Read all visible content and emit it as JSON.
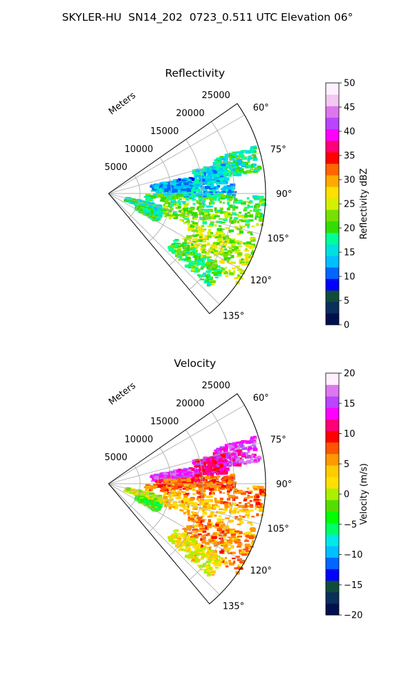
{
  "title": "SKYLER-HU  SN14_202  0723_0.511 UTC Elevation 06°",
  "chart_data": [
    {
      "type": "heatmap",
      "subplot": "polar-sector",
      "title": "Reflectivity",
      "radial_label": "Meters",
      "radial_ticks": [
        5000,
        10000,
        15000,
        20000,
        25000
      ],
      "radial_tick_labels": [
        "5000",
        "10000",
        "15000",
        "20000",
        "25000"
      ],
      "r_max": 25000,
      "azimuth_range_deg": [
        55,
        140
      ],
      "azimuth_ticks_deg": [
        60,
        75,
        90,
        105,
        120,
        135
      ],
      "azimuth_tick_labels": [
        "60°",
        "75°",
        "90°",
        "105°",
        "120°",
        "135°"
      ],
      "colorbar": {
        "label": "Reflectivity dBZ",
        "range": [
          0,
          50
        ],
        "ticks": [
          0,
          5,
          10,
          15,
          20,
          25,
          30,
          35,
          40,
          45,
          50
        ],
        "tick_labels": [
          "0",
          "5",
          "10",
          "15",
          "20",
          "25",
          "30",
          "35",
          "40",
          "45",
          "50"
        ],
        "colormap": [
          "#00104e",
          "#0a2f5a",
          "#0f4d3a",
          "#0000ff",
          "#0066ff",
          "#00bfff",
          "#00e0e0",
          "#00ff99",
          "#33dd00",
          "#77e000",
          "#d4f000",
          "#ffe000",
          "#ffaa00",
          "#ff6600",
          "#ff0000",
          "#ff0077",
          "#ff00ff",
          "#bb44ff",
          "#dd77ee",
          "#f2c8f2",
          "#fff0ff"
        ]
      },
      "echo_regions": [
        {
          "az": [
            72,
            82
          ],
          "r": [
            17500,
            24500
          ],
          "value": 18
        },
        {
          "az": [
            79,
            87
          ],
          "r": [
            7000,
            14000
          ],
          "value": 13
        },
        {
          "az": [
            86,
            92
          ],
          "r": [
            7500,
            20000
          ],
          "value": 14
        },
        {
          "az": [
            91,
            100
          ],
          "r": [
            6000,
            25000
          ],
          "value": 20
        },
        {
          "az": [
            99,
            112
          ],
          "r": [
            9000,
            25000
          ],
          "value": 22
        },
        {
          "az": [
            110,
            125
          ],
          "r": [
            14000,
            25000
          ],
          "value": 24
        },
        {
          "az": [
            103,
            112
          ],
          "r": [
            3000,
            9000
          ],
          "value": 17
        },
        {
          "az": [
            112,
            120
          ],
          "r": [
            5000,
            9000
          ],
          "value": 19
        },
        {
          "az": [
            123,
            133
          ],
          "r": [
            13000,
            22000
          ],
          "value": 20
        },
        {
          "az": [
            75,
            85
          ],
          "r": [
            14000,
            19000
          ],
          "value": 15
        }
      ]
    },
    {
      "type": "heatmap",
      "subplot": "polar-sector",
      "title": "Velocity",
      "radial_label": "Meters",
      "radial_ticks": [
        5000,
        10000,
        15000,
        20000,
        25000
      ],
      "radial_tick_labels": [
        "5000",
        "10000",
        "15000",
        "20000",
        "25000"
      ],
      "r_max": 25000,
      "azimuth_range_deg": [
        55,
        140
      ],
      "azimuth_ticks_deg": [
        60,
        75,
        90,
        105,
        120,
        135
      ],
      "azimuth_tick_labels": [
        "60°",
        "75°",
        "90°",
        "105°",
        "120°",
        "135°"
      ],
      "colorbar": {
        "label": "Velocity (m/s)",
        "range": [
          -20,
          20
        ],
        "ticks": [
          -20,
          -15,
          -10,
          -5,
          0,
          5,
          10,
          15,
          20
        ],
        "tick_labels": [
          "−20",
          "−15",
          "−10",
          "−5",
          "0",
          "5",
          "10",
          "15",
          "20"
        ],
        "colormap": [
          "#00104e",
          "#0a2f5a",
          "#0f4d3a",
          "#0000ff",
          "#0066ff",
          "#00bfff",
          "#00e8e8",
          "#00ff66",
          "#00ff00",
          "#55dd00",
          "#aaf000",
          "#ffe000",
          "#ffcc00",
          "#ff9900",
          "#ff5500",
          "#ff0000",
          "#ff0077",
          "#ff00ff",
          "#bb44ff",
          "#dd77ee",
          "#fff0ff"
        ]
      },
      "echo_regions": [
        {
          "az": [
            72,
            82
          ],
          "r": [
            17500,
            24500
          ],
          "value": 15
        },
        {
          "az": [
            79,
            87
          ],
          "r": [
            7000,
            14000
          ],
          "value": 15
        },
        {
          "az": [
            86,
            92
          ],
          "r": [
            7500,
            20000
          ],
          "value": 8
        },
        {
          "az": [
            91,
            100
          ],
          "r": [
            6000,
            25000
          ],
          "value": 7
        },
        {
          "az": [
            99,
            112
          ],
          "r": [
            9000,
            25000
          ],
          "value": 4
        },
        {
          "az": [
            110,
            125
          ],
          "r": [
            14000,
            25000
          ],
          "value": 6
        },
        {
          "az": [
            103,
            112
          ],
          "r": [
            3000,
            9000
          ],
          "value": 1
        },
        {
          "az": [
            112,
            120
          ],
          "r": [
            5000,
            9000
          ],
          "value": -3
        },
        {
          "az": [
            123,
            133
          ],
          "r": [
            13000,
            22000
          ],
          "value": 2
        },
        {
          "az": [
            75,
            85
          ],
          "r": [
            14000,
            19000
          ],
          "value": 12
        }
      ]
    }
  ]
}
